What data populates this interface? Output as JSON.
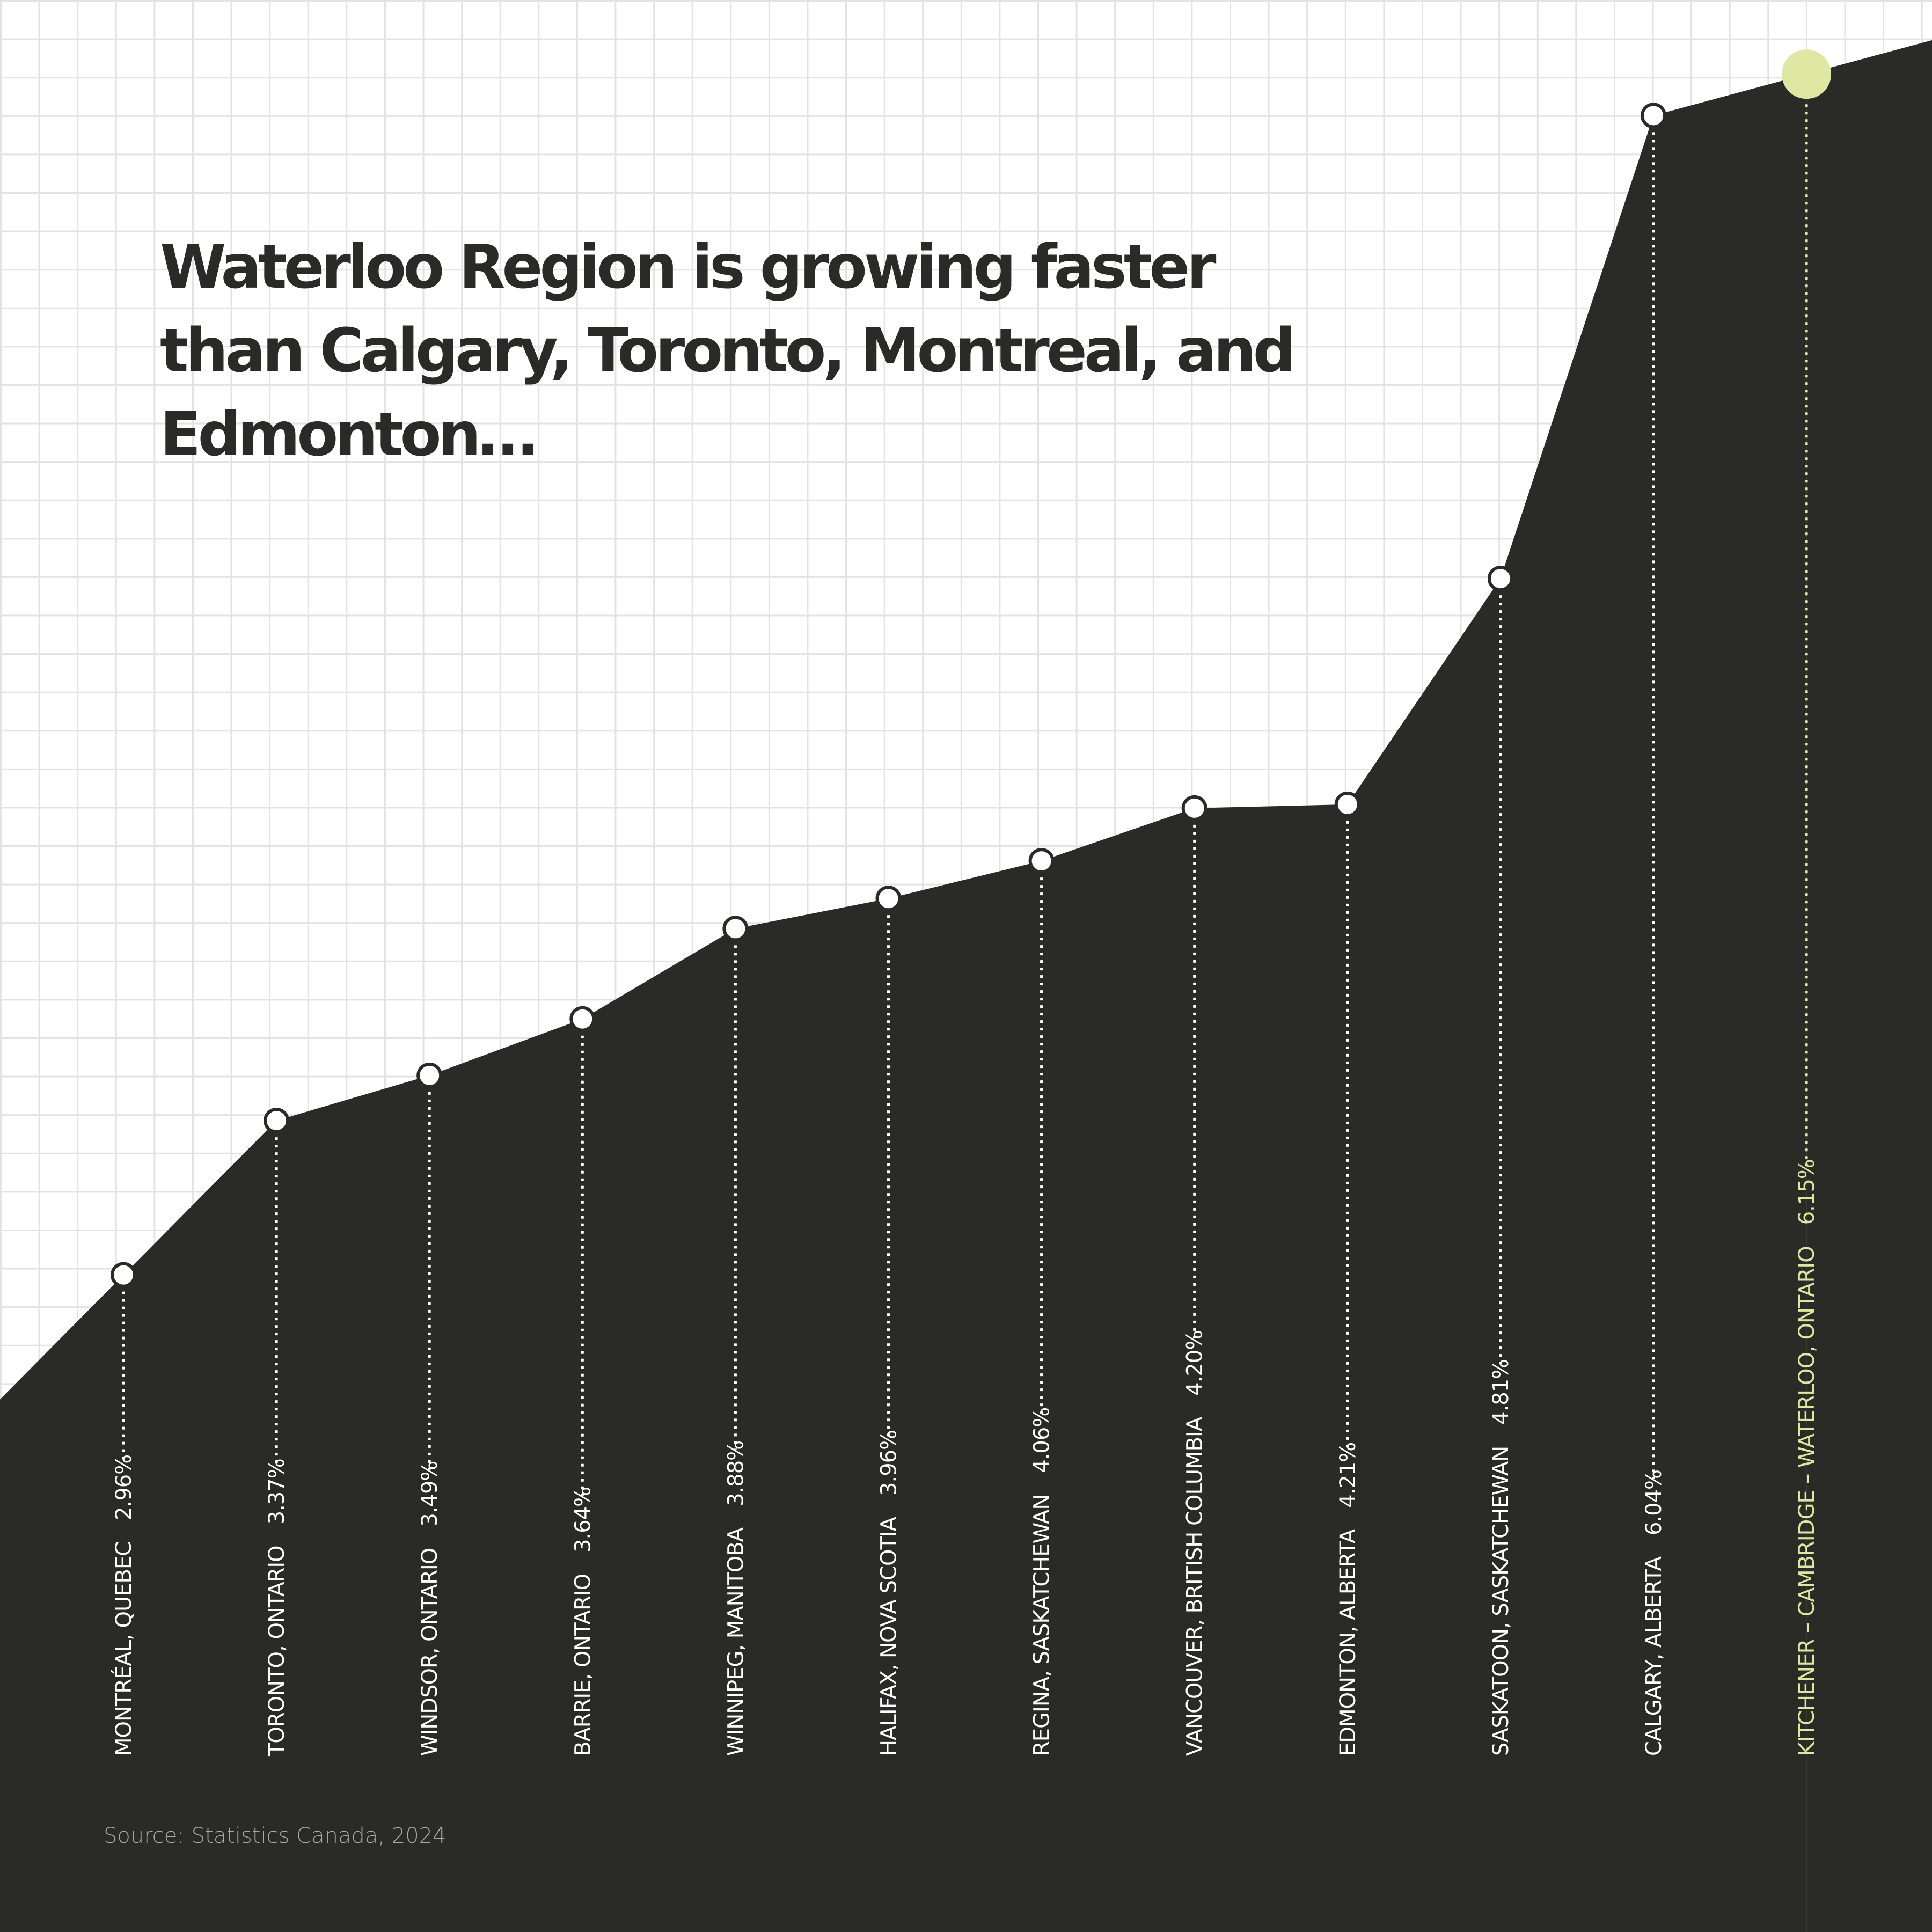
{
  "chart_data": {
    "type": "area",
    "title": "Waterloo Region is growing faster\nthan Calgary, Toronto, Montreal, and\nEdmonton…",
    "categories": [
      "MONTRÉAL, QUEBEC",
      "TORONTO, ONTARIO",
      "WINDSOR, ONTARIO",
      "BARRIE, ONTARIO",
      "WINNIPEG, MANITOBA",
      "HALIFAX, NOVA SCOTIA",
      "REGINA, SASKATCHEWAN",
      "VANCOUVER, BRITISH COLUMBIA",
      "EDMONTON, ALBERTA",
      "SASKATOON, SASKATCHEWAN",
      "CALGARY, ALBERTA",
      "KITCHENER – CAMBRIDGE – WATERLOO, ONTARIO"
    ],
    "values": [
      2.96,
      3.37,
      3.49,
      3.64,
      3.88,
      3.96,
      4.06,
      4.2,
      4.21,
      4.81,
      6.04,
      6.15
    ],
    "value_labels": [
      "2.96%",
      "3.37%",
      "3.49%",
      "3.64%",
      "3.88%",
      "3.96%",
      "4.06%",
      "4.20%",
      "4.21%",
      "4.81%",
      "6.04%",
      "6.15%"
    ],
    "ylim": [
      2,
      7
    ],
    "color": "#2a2b27",
    "point_color": "#ffffff",
    "highlight_color": "#dfe8a3",
    "highlight_index": 11,
    "source": "Source: Statistics Canada, 2024"
  }
}
